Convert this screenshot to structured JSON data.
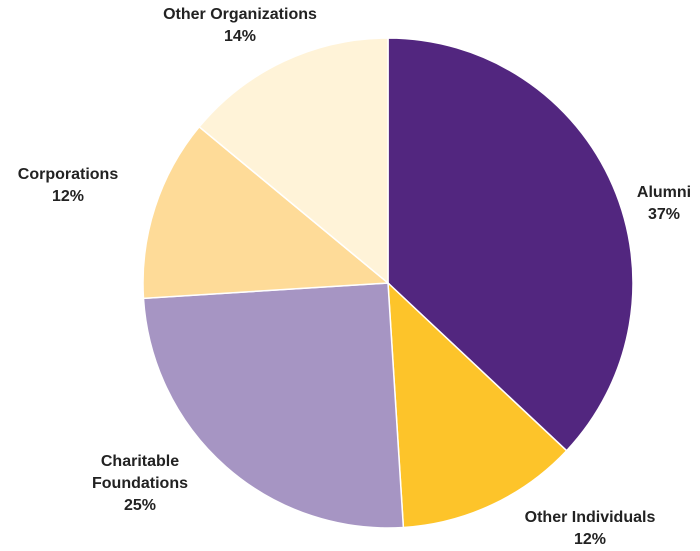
{
  "chart_data": {
    "type": "pie",
    "categories": [
      "Alumni",
      "Other Individuals",
      "Charitable Foundations",
      "Corporations",
      "Other Organizations"
    ],
    "values": [
      37,
      12,
      25,
      12,
      14
    ],
    "value_labels": [
      "37%",
      "12%",
      "25%",
      "12%",
      "14%"
    ],
    "colors": [
      "#52267f",
      "#fdc42a",
      "#a695c3",
      "#fedb98",
      "#fff3d8"
    ]
  }
}
